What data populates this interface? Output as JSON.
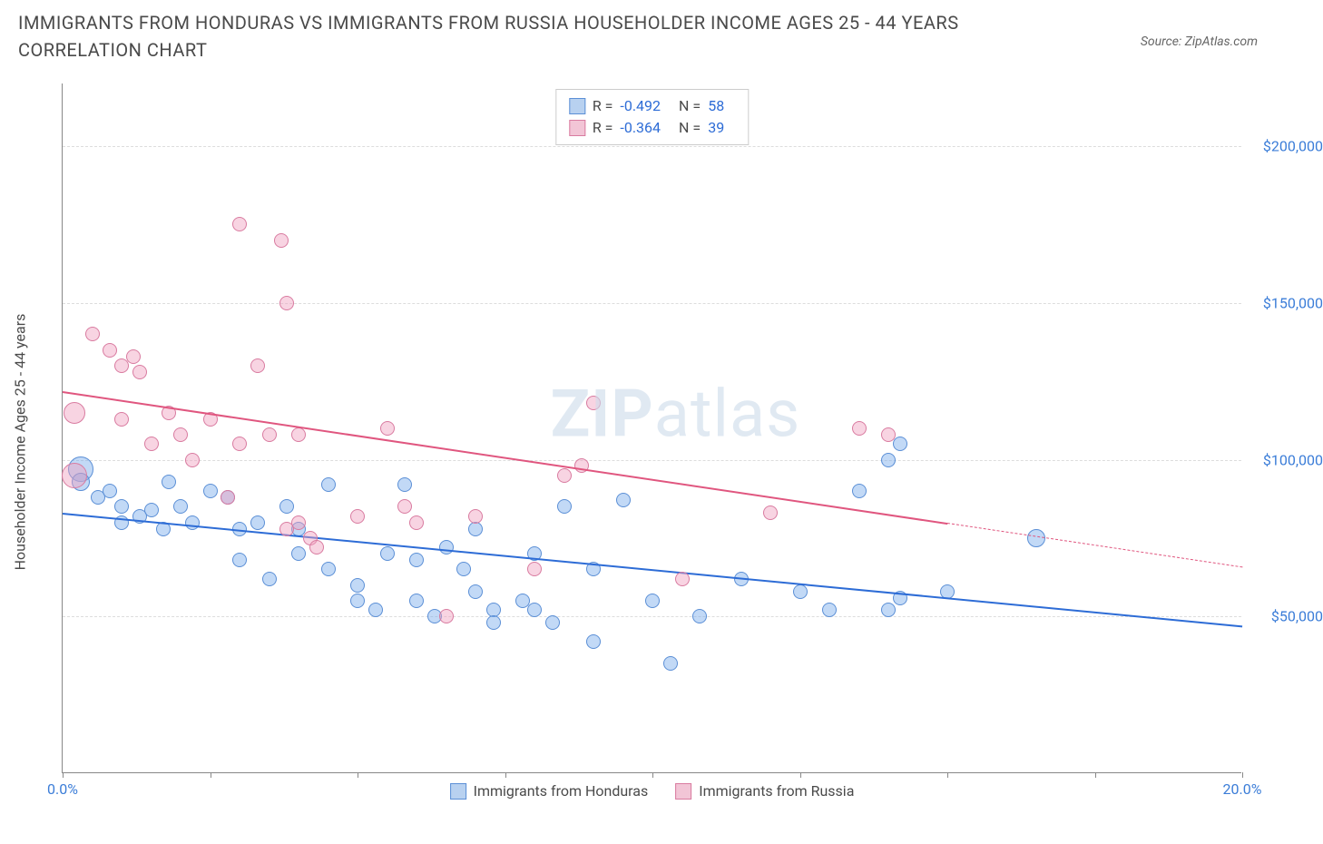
{
  "title": "IMMIGRANTS FROM HONDURAS VS IMMIGRANTS FROM RUSSIA HOUSEHOLDER INCOME AGES 25 - 44 YEARS CORRELATION CHART",
  "source": "Source: ZipAtlas.com",
  "watermark_a": "ZIP",
  "watermark_b": "atlas",
  "chart": {
    "type": "scatter",
    "y_axis_label": "Householder Income Ages 25 - 44 years",
    "y_min": 0,
    "y_max": 220000,
    "y_ticks": [
      {
        "v": 50000,
        "label": "$50,000"
      },
      {
        "v": 100000,
        "label": "$100,000"
      },
      {
        "v": 150000,
        "label": "$150,000"
      },
      {
        "v": 200000,
        "label": "$200,000"
      }
    ],
    "x_min": 0,
    "x_max": 20,
    "x_ticks": [
      0,
      2.5,
      5,
      7.5,
      10,
      12.5,
      15,
      17.5,
      20
    ],
    "x_tick_labels": [
      {
        "v": 0,
        "label": "0.0%"
      },
      {
        "v": 20,
        "label": "20.0%"
      }
    ],
    "grid_color": "#dddddd",
    "background_color": "#ffffff",
    "series": [
      {
        "name": "Immigrants from Honduras",
        "color_fill": "rgba(120,170,235,0.45)",
        "color_stroke": "#5b8fd6",
        "swatch_fill": "#b8d1f0",
        "swatch_stroke": "#5b8fd6",
        "r_stat": "-0.492",
        "n_stat": "58",
        "marker_radius": 8,
        "trend": {
          "x1": 0,
          "y1": 83000,
          "x2": 20,
          "y2": 47000,
          "color": "#2d6cd6",
          "width": 2,
          "dash": false
        },
        "points": [
          [
            0.3,
            97000,
            14
          ],
          [
            0.3,
            93000,
            10
          ],
          [
            0.6,
            88000,
            8
          ],
          [
            0.8,
            90000,
            8
          ],
          [
            1.0,
            85000,
            8
          ],
          [
            1.0,
            80000,
            8
          ],
          [
            1.3,
            82000,
            8
          ],
          [
            1.5,
            84000,
            8
          ],
          [
            1.7,
            78000,
            8
          ],
          [
            1.8,
            93000,
            8
          ],
          [
            2.0,
            85000,
            8
          ],
          [
            2.2,
            80000,
            8
          ],
          [
            2.5,
            90000,
            8
          ],
          [
            2.8,
            88000,
            8
          ],
          [
            3.0,
            78000,
            8
          ],
          [
            3.0,
            68000,
            8
          ],
          [
            3.3,
            80000,
            8
          ],
          [
            3.5,
            62000,
            8
          ],
          [
            3.8,
            85000,
            8
          ],
          [
            4.0,
            78000,
            8
          ],
          [
            4.0,
            70000,
            8
          ],
          [
            4.5,
            92000,
            8
          ],
          [
            4.5,
            65000,
            8
          ],
          [
            5.0,
            60000,
            8
          ],
          [
            5.0,
            55000,
            8
          ],
          [
            5.3,
            52000,
            8
          ],
          [
            5.5,
            70000,
            8
          ],
          [
            5.8,
            92000,
            8
          ],
          [
            6.0,
            68000,
            8
          ],
          [
            6.0,
            55000,
            8
          ],
          [
            6.3,
            50000,
            8
          ],
          [
            6.5,
            72000,
            8
          ],
          [
            6.8,
            65000,
            8
          ],
          [
            7.0,
            78000,
            8
          ],
          [
            7.0,
            58000,
            8
          ],
          [
            7.3,
            52000,
            8
          ],
          [
            7.3,
            48000,
            8
          ],
          [
            7.8,
            55000,
            8
          ],
          [
            8.0,
            70000,
            8
          ],
          [
            8.0,
            52000,
            8
          ],
          [
            8.3,
            48000,
            8
          ],
          [
            8.5,
            85000,
            8
          ],
          [
            9.0,
            65000,
            8
          ],
          [
            9.0,
            42000,
            8
          ],
          [
            9.5,
            87000,
            8
          ],
          [
            10.0,
            55000,
            8
          ],
          [
            10.3,
            35000,
            8
          ],
          [
            10.8,
            50000,
            8
          ],
          [
            11.5,
            62000,
            8
          ],
          [
            12.5,
            58000,
            8
          ],
          [
            13.0,
            52000,
            8
          ],
          [
            13.5,
            90000,
            8
          ],
          [
            14.0,
            100000,
            8
          ],
          [
            14.0,
            52000,
            8
          ],
          [
            14.2,
            56000,
            8
          ],
          [
            15.0,
            58000,
            8
          ],
          [
            16.5,
            75000,
            10
          ],
          [
            14.2,
            105000,
            8
          ]
        ]
      },
      {
        "name": "Immigrants from Russia",
        "color_fill": "rgba(240,160,190,0.45)",
        "color_stroke": "#d97ba0",
        "swatch_fill": "#f2c5d6",
        "swatch_stroke": "#d97ba0",
        "r_stat": "-0.364",
        "n_stat": "39",
        "marker_radius": 8,
        "trend": {
          "x1": 0,
          "y1": 122000,
          "x2": 15,
          "y2": 80000,
          "color": "#e0567f",
          "width": 2,
          "dash": false
        },
        "trend_ext": {
          "x1": 15,
          "y1": 80000,
          "x2": 20,
          "y2": 66000,
          "color": "#e0567f",
          "width": 1,
          "dash": true
        },
        "points": [
          [
            0.2,
            115000,
            12
          ],
          [
            0.2,
            95000,
            14
          ],
          [
            0.5,
            140000,
            8
          ],
          [
            0.8,
            135000,
            8
          ],
          [
            1.0,
            130000,
            8
          ],
          [
            1.0,
            113000,
            8
          ],
          [
            1.2,
            133000,
            8
          ],
          [
            1.3,
            128000,
            8
          ],
          [
            1.5,
            105000,
            8
          ],
          [
            1.8,
            115000,
            8
          ],
          [
            2.0,
            108000,
            8
          ],
          [
            2.2,
            100000,
            8
          ],
          [
            2.5,
            113000,
            8
          ],
          [
            2.8,
            88000,
            8
          ],
          [
            3.0,
            175000,
            8
          ],
          [
            3.0,
            105000,
            8
          ],
          [
            3.3,
            130000,
            8
          ],
          [
            3.5,
            108000,
            8
          ],
          [
            3.7,
            170000,
            8
          ],
          [
            3.8,
            150000,
            8
          ],
          [
            3.8,
            78000,
            8
          ],
          [
            4.0,
            108000,
            8
          ],
          [
            4.0,
            80000,
            8
          ],
          [
            4.2,
            75000,
            8
          ],
          [
            4.3,
            72000,
            8
          ],
          [
            5.0,
            82000,
            8
          ],
          [
            5.5,
            110000,
            8
          ],
          [
            5.8,
            85000,
            8
          ],
          [
            6.0,
            80000,
            8
          ],
          [
            6.5,
            50000,
            8
          ],
          [
            7.0,
            82000,
            8
          ],
          [
            8.0,
            65000,
            8
          ],
          [
            8.5,
            95000,
            8
          ],
          [
            9.0,
            118000,
            8
          ],
          [
            10.5,
            62000,
            8
          ],
          [
            12.0,
            83000,
            8
          ],
          [
            13.5,
            110000,
            8
          ],
          [
            14.0,
            108000,
            8
          ],
          [
            8.8,
            98000,
            8
          ]
        ]
      }
    ],
    "legend_labels": {
      "r": "R =",
      "n": "N ="
    }
  }
}
